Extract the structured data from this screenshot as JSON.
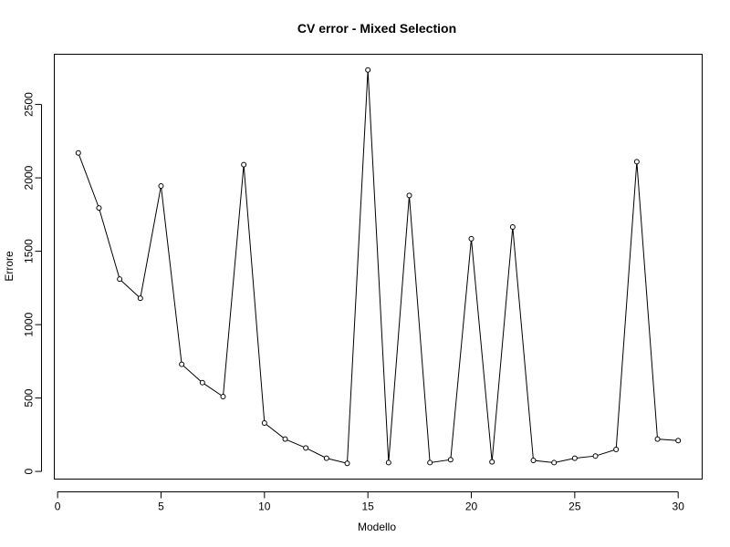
{
  "chart_data": {
    "type": "line",
    "title": "CV error - Mixed Selection",
    "xlabel": "Modello",
    "ylabel": "Errore",
    "xlim": [
      0,
      31
    ],
    "ylim": [
      0,
      2750
    ],
    "xticks": [
      0,
      5,
      10,
      15,
      20,
      25,
      30
    ],
    "yticks": [
      0,
      500,
      1000,
      1500,
      2000,
      2500
    ],
    "grid": false,
    "markers": "open-circle",
    "x": [
      1,
      2,
      3,
      4,
      5,
      6,
      7,
      8,
      9,
      10,
      11,
      12,
      13,
      14,
      15,
      16,
      17,
      18,
      19,
      20,
      21,
      22,
      23,
      24,
      25,
      26,
      27,
      28,
      29,
      30
    ],
    "series": [
      {
        "values": [
          2170,
          1795,
          1310,
          1180,
          1945,
          730,
          605,
          510,
          2090,
          330,
          220,
          160,
          90,
          55,
          2735,
          60,
          1880,
          60,
          80,
          1585,
          65,
          1665,
          75,
          60,
          90,
          105,
          150,
          2110,
          220,
          210
        ]
      }
    ]
  }
}
